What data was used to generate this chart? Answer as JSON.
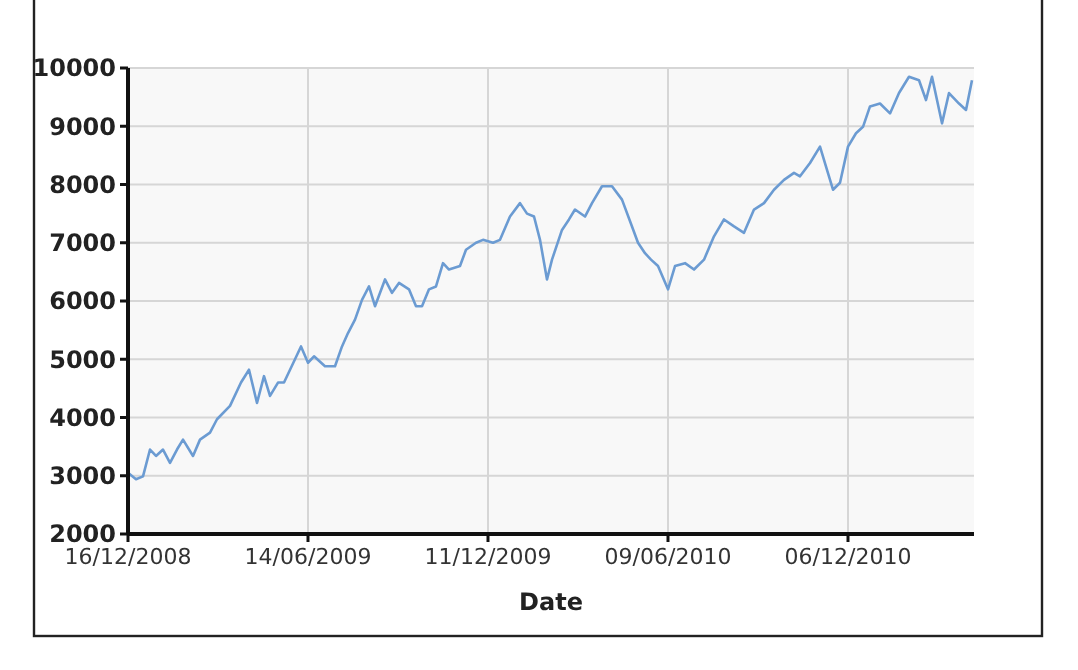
{
  "chart_data": {
    "type": "line",
    "xlabel": "Date",
    "grid": true,
    "marker": "none",
    "line_style": "solid",
    "xlim": [
      "2008-12-16",
      "2011-04-11"
    ],
    "ylim": [
      2000,
      10000
    ],
    "xticks": [
      {
        "value": "2008-12-16",
        "label": "16/12/2008"
      },
      {
        "value": "2009-06-14",
        "label": "14/06/2009"
      },
      {
        "value": "2009-12-11",
        "label": "11/12/2009"
      },
      {
        "value": "2010-06-09",
        "label": "09/06/2010"
      },
      {
        "value": "2010-12-06",
        "label": "06/12/2010"
      }
    ],
    "yticks": [
      2000,
      3000,
      4000,
      5000,
      6000,
      7000,
      8000,
      9000,
      10000
    ],
    "x": [
      "2008-12-16",
      "2008-12-24",
      "2008-12-31",
      "2009-01-07",
      "2009-01-13",
      "2009-01-20",
      "2009-01-27",
      "2009-02-03",
      "2009-02-09",
      "2009-02-19",
      "2009-02-26",
      "2009-03-08",
      "2009-03-15",
      "2009-03-28",
      "2009-04-08",
      "2009-04-16",
      "2009-04-24",
      "2009-05-01",
      "2009-05-07",
      "2009-05-15",
      "2009-05-21",
      "2009-06-01",
      "2009-06-07",
      "2009-06-14",
      "2009-06-20",
      "2009-07-01",
      "2009-07-11",
      "2009-07-18",
      "2009-07-24",
      "2009-07-31",
      "2009-08-07",
      "2009-08-14",
      "2009-08-20",
      "2009-08-30",
      "2009-09-06",
      "2009-09-13",
      "2009-09-23",
      "2009-09-30",
      "2009-10-06",
      "2009-10-13",
      "2009-10-20",
      "2009-10-27",
      "2009-11-02",
      "2009-11-13",
      "2009-11-19",
      "2009-11-29",
      "2009-12-06",
      "2009-12-16",
      "2009-12-23",
      "2010-01-02",
      "2010-01-12",
      "2010-01-19",
      "2010-01-26",
      "2010-02-01",
      "2010-02-08",
      "2010-02-13",
      "2010-02-23",
      "2010-03-02",
      "2010-03-08",
      "2010-03-18",
      "2010-03-25",
      "2010-04-04",
      "2010-04-14",
      "2010-04-24",
      "2010-05-04",
      "2010-05-10",
      "2010-05-17",
      "2010-05-23",
      "2010-05-30",
      "2010-06-09",
      "2010-06-16",
      "2010-06-26",
      "2010-07-05",
      "2010-07-15",
      "2010-07-25",
      "2010-08-04",
      "2010-08-14",
      "2010-08-24",
      "2010-09-03",
      "2010-09-13",
      "2010-09-23",
      "2010-10-03",
      "2010-10-13",
      "2010-10-19",
      "2010-10-29",
      "2010-11-08",
      "2010-11-15",
      "2010-11-21",
      "2010-11-28",
      "2010-12-06",
      "2010-12-14",
      "2010-12-21",
      "2010-12-28",
      "2011-01-07",
      "2011-01-17",
      "2011-01-26",
      "2011-02-05",
      "2011-02-15",
      "2011-02-22",
      "2011-02-28",
      "2011-03-10",
      "2011-03-17",
      "2011-03-27",
      "2011-04-03",
      "2011-04-09"
    ],
    "series": [
      {
        "color": "#6b9bd2",
        "values": [
          3050,
          2940,
          2990,
          3450,
          3340,
          3450,
          3220,
          3450,
          3620,
          3340,
          3620,
          3740,
          3970,
          4200,
          4600,
          4820,
          4250,
          4710,
          4370,
          4600,
          4600,
          5000,
          5220,
          4940,
          5050,
          4880,
          4880,
          5220,
          5450,
          5680,
          6020,
          6250,
          5910,
          6370,
          6140,
          6310,
          6200,
          5910,
          5910,
          6200,
          6250,
          6650,
          6540,
          6600,
          6880,
          7000,
          7050,
          7000,
          7050,
          7450,
          7680,
          7500,
          7450,
          7050,
          6370,
          6710,
          7220,
          7400,
          7570,
          7450,
          7680,
          7970,
          7970,
          7740,
          7280,
          7000,
          6820,
          6710,
          6600,
          6200,
          6600,
          6650,
          6540,
          6710,
          7110,
          7400,
          7280,
          7170,
          7570,
          7680,
          7910,
          8080,
          8200,
          8140,
          8370,
          8650,
          8250,
          7910,
          8030,
          8650,
          8880,
          8990,
          9340,
          9390,
          9220,
          9570,
          9850,
          9790,
          9450,
          9850,
          9050,
          9570,
          9390,
          9280,
          9790
        ]
      }
    ]
  }
}
